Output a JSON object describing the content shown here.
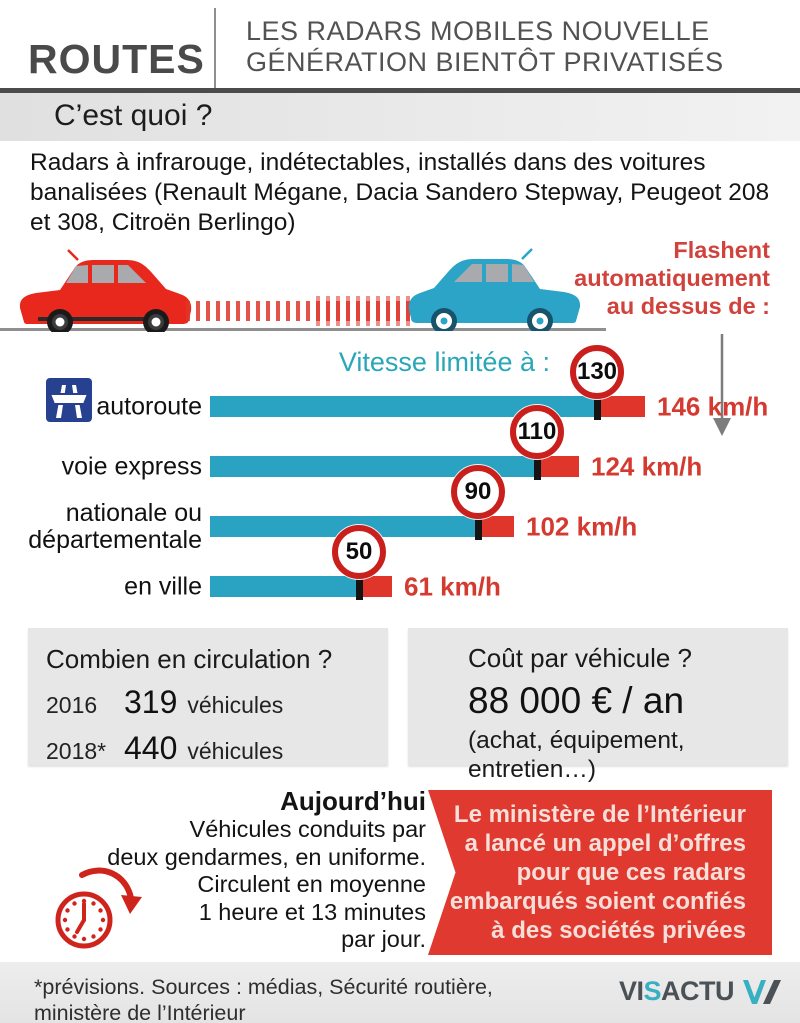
{
  "header": {
    "kicker": "ROUTES",
    "title_line1": "LES RADARS MOBILES NOUVELLE",
    "title_line2": "GÉNÉRATION BIENTÔT PRIVATISÉS"
  },
  "what": {
    "heading": "C’est quoi ?",
    "body": "Radars à infrarouge, indétectables, installés dans des voitures banalisées (Renault Mégane, Dacia Sandero Stepway, Peugeot 208 et 308, Citroën Berlingo)"
  },
  "scene": {
    "flash_lines": [
      "Flashent",
      "automatiquement",
      "au dessus de :"
    ]
  },
  "chart_data": {
    "type": "bar",
    "title": "Vitesse limitée à :",
    "unit": "km/h",
    "categories": [
      "autoroute",
      "voie express",
      "nationale ou départementale",
      "en ville"
    ],
    "label_lines": [
      [
        "autoroute"
      ],
      [
        "voie express"
      ],
      [
        "nationale ou",
        "départementale"
      ],
      [
        "en ville"
      ]
    ],
    "series": [
      {
        "name": "Vitesse limitée à",
        "values": [
          130,
          110,
          90,
          50
        ]
      },
      {
        "name": "Flashent automatiquement au dessus de",
        "values": [
          146,
          124,
          102,
          61
        ]
      }
    ],
    "value_labels": [
      "146 km/h",
      "124 km/h",
      "102 km/h",
      "61 km/h"
    ],
    "xlim": [
      0,
      160
    ],
    "legend_position": "none",
    "grid": false,
    "colors": {
      "limit_bar": "#2aa3c2",
      "over_bar": "#e0352b",
      "tick": "#141414",
      "sign_ring": "#c9201d",
      "value_text": "#d43a30"
    }
  },
  "circulation": {
    "heading": "Combien en circulation ?",
    "rows": [
      {
        "year": "2016",
        "value": "319",
        "unit": "véhicules"
      },
      {
        "year": "2018*",
        "value": "440",
        "unit": "véhicules"
      }
    ]
  },
  "cost": {
    "heading": "Coût par véhicule ?",
    "amount": "88 000 € / an",
    "detail_line1": "(achat, équipement,",
    "detail_line2": "entretien…)"
  },
  "today": {
    "heading": "Aujourd’hui",
    "lines": [
      "Véhicules conduits par",
      "deux gendarmes, en uniforme.",
      "Circulent en moyenne",
      "1 heure et 13 minutes",
      "par jour."
    ]
  },
  "banner": {
    "lines": [
      "Le ministère de l’Intérieur",
      "a lancé un appel d’offres",
      "pour que ces radars",
      "embarqués soient confiés",
      "à des sociétés privées"
    ]
  },
  "footer": {
    "note_line1": "*prévisions.  Sources : médias, Sécurité routière,",
    "note_line2": "ministère de l’Intérieur",
    "brand_parts": [
      "VI",
      "S",
      "ACTU"
    ]
  }
}
